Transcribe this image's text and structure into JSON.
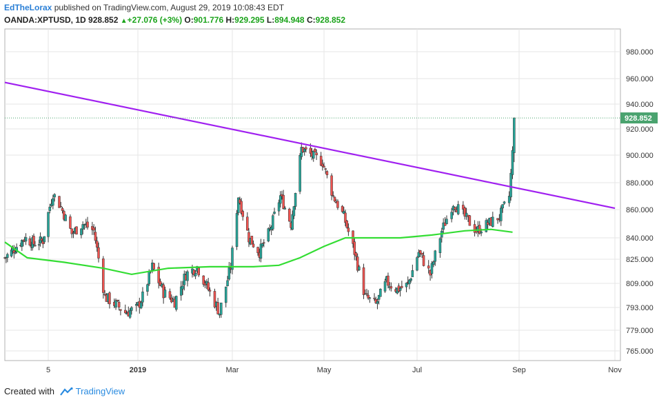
{
  "header": {
    "author": "EdTheLorax",
    "published": "published on TradingView.com, August 29, 2019 10:08:43 EDT",
    "symbol": "OANDA:XPTUSD, 1D",
    "last": "928.852",
    "change_arrow": "▲",
    "change": "+27.076 (+3%)",
    "o_label": "O:",
    "o_value": "901.776",
    "h_label": "H:",
    "h_value": "929.295",
    "l_label": "L:",
    "l_value": "894.948",
    "c_label": "C:",
    "c_value": "928.852"
  },
  "footer": {
    "created_with": "Created with",
    "brand": "TradingView"
  },
  "colors": {
    "up": "#26a69a",
    "down": "#ef5350",
    "wick": "#333333",
    "ma": "#33dd33",
    "trendline": "#a020f0",
    "price_tag": "#4aa36f",
    "grid": "#e6e6e6"
  },
  "chart_data": {
    "type": "candlestick",
    "instrument": "OANDA:XPTUSD",
    "interval": "1D",
    "last_price": 928.852,
    "last_price_label": "928.852",
    "y_tick_labels": [
      "980.000",
      "960.000",
      "940.000",
      "920.000",
      "900.000",
      "880.000",
      "860.000",
      "840.000",
      "825.000",
      "809.000",
      "793.000",
      "779.000",
      "765.000"
    ],
    "y_tick_values": [
      980,
      960,
      940,
      920,
      900,
      880,
      860,
      840,
      825,
      809,
      793,
      779,
      765
    ],
    "x_tick_labels": [
      "5",
      "2019",
      "Mar",
      "May",
      "Jul",
      "Sep",
      "Nov"
    ],
    "x_tick_dates": [
      "2018-11-05",
      "2019-01-01",
      "2019-03-01",
      "2019-05-01",
      "2019-07-01",
      "2019-09-01",
      "2019-11-01"
    ],
    "trendline": {
      "start": {
        "date": "2018-10-03",
        "price": 957
      },
      "end": {
        "date": "2019-11-05",
        "price": 861
      }
    },
    "moving_average": [
      {
        "date": "2018-10-03",
        "value": 837
      },
      {
        "date": "2018-10-20",
        "value": 826
      },
      {
        "date": "2018-11-15",
        "value": 823
      },
      {
        "date": "2018-12-10",
        "value": 819
      },
      {
        "date": "2018-12-28",
        "value": 815
      },
      {
        "date": "2019-01-20",
        "value": 819
      },
      {
        "date": "2019-02-15",
        "value": 820
      },
      {
        "date": "2019-03-15",
        "value": 820
      },
      {
        "date": "2019-04-01",
        "value": 821
      },
      {
        "date": "2019-04-15",
        "value": 826
      },
      {
        "date": "2019-05-01",
        "value": 834
      },
      {
        "date": "2019-05-15",
        "value": 840
      },
      {
        "date": "2019-06-01",
        "value": 840
      },
      {
        "date": "2019-06-20",
        "value": 840
      },
      {
        "date": "2019-07-10",
        "value": 842
      },
      {
        "date": "2019-07-30",
        "value": 845
      },
      {
        "date": "2019-08-15",
        "value": 846
      },
      {
        "date": "2019-08-28",
        "value": 844
      }
    ],
    "closes": [
      {
        "date": "2018-10-03",
        "close": 826
      },
      {
        "date": "2018-10-10",
        "close": 832
      },
      {
        "date": "2018-10-18",
        "close": 840
      },
      {
        "date": "2018-10-25",
        "close": 836
      },
      {
        "date": "2018-11-01",
        "close": 838
      },
      {
        "date": "2018-11-08",
        "close": 872
      },
      {
        "date": "2018-11-13",
        "close": 862
      },
      {
        "date": "2018-11-20",
        "close": 843
      },
      {
        "date": "2018-11-27",
        "close": 850
      },
      {
        "date": "2018-12-04",
        "close": 845
      },
      {
        "date": "2018-12-11",
        "close": 800
      },
      {
        "date": "2018-12-18",
        "close": 795
      },
      {
        "date": "2018-12-24",
        "close": 790
      },
      {
        "date": "2018-12-31",
        "close": 792
      },
      {
        "date": "2019-01-04",
        "close": 800
      },
      {
        "date": "2019-01-10",
        "close": 820
      },
      {
        "date": "2019-01-17",
        "close": 803
      },
      {
        "date": "2019-01-24",
        "close": 797
      },
      {
        "date": "2019-01-31",
        "close": 815
      },
      {
        "date": "2019-02-07",
        "close": 820
      },
      {
        "date": "2019-02-14",
        "close": 805
      },
      {
        "date": "2019-02-21",
        "close": 790
      },
      {
        "date": "2019-02-28",
        "close": 820
      },
      {
        "date": "2019-03-05",
        "close": 870
      },
      {
        "date": "2019-03-12",
        "close": 840
      },
      {
        "date": "2019-03-19",
        "close": 830
      },
      {
        "date": "2019-03-26",
        "close": 845
      },
      {
        "date": "2019-04-02",
        "close": 870
      },
      {
        "date": "2019-04-09",
        "close": 850
      },
      {
        "date": "2019-04-16",
        "close": 905
      },
      {
        "date": "2019-04-23",
        "close": 900
      },
      {
        "date": "2019-04-30",
        "close": 895
      },
      {
        "date": "2019-05-07",
        "close": 870
      },
      {
        "date": "2019-05-14",
        "close": 855
      },
      {
        "date": "2019-05-21",
        "close": 830
      },
      {
        "date": "2019-05-28",
        "close": 800
      },
      {
        "date": "2019-06-04",
        "close": 795
      },
      {
        "date": "2019-06-11",
        "close": 810
      },
      {
        "date": "2019-06-18",
        "close": 805
      },
      {
        "date": "2019-06-25",
        "close": 808
      },
      {
        "date": "2019-07-02",
        "close": 830
      },
      {
        "date": "2019-07-09",
        "close": 815
      },
      {
        "date": "2019-07-16",
        "close": 845
      },
      {
        "date": "2019-07-23",
        "close": 865
      },
      {
        "date": "2019-07-30",
        "close": 855
      },
      {
        "date": "2019-08-06",
        "close": 845
      },
      {
        "date": "2019-08-13",
        "close": 850
      },
      {
        "date": "2019-08-20",
        "close": 855
      },
      {
        "date": "2019-08-26",
        "close": 870
      },
      {
        "date": "2019-08-28",
        "close": 901.776
      },
      {
        "date": "2019-08-29",
        "close": 928.852
      }
    ]
  }
}
